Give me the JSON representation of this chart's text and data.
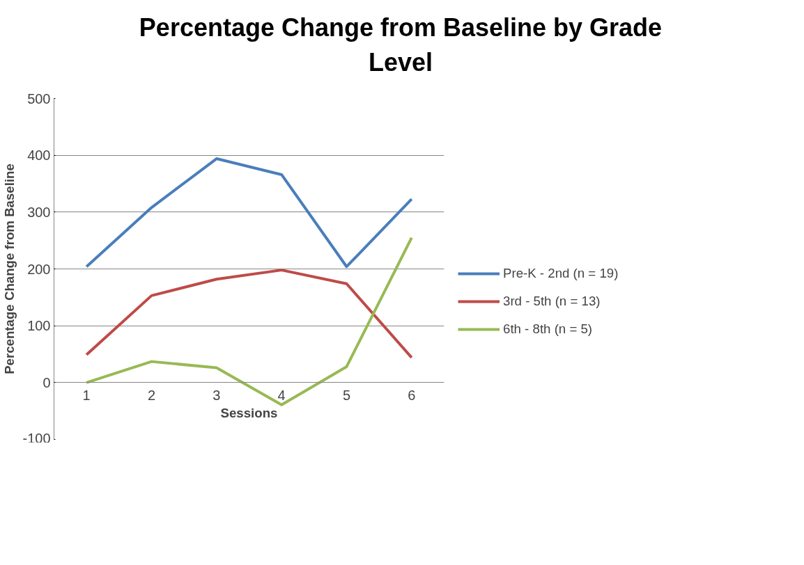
{
  "chart_data": {
    "type": "line",
    "title": "Percentage Change from Baseline by Grade Level",
    "xlabel": "Sessions",
    "ylabel": "Percentage Change from Baseline",
    "categories": [
      "1",
      "2",
      "3",
      "4",
      "5",
      "6"
    ],
    "series": [
      {
        "name": "Pre-K - 2nd (n = 19)",
        "color": "#4a7ebb",
        "values": [
          204,
          308,
          394,
          366,
          204,
          323
        ]
      },
      {
        "name": "3rd - 5th (n = 13)",
        "color": "#be4b48",
        "values": [
          49,
          153,
          182,
          198,
          174,
          44
        ]
      },
      {
        "name": "6th - 8th (n = 5)",
        "color": "#98b954",
        "values": [
          0,
          37,
          26,
          -39,
          28,
          255
        ]
      }
    ],
    "ylim": [
      -100,
      500
    ],
    "yticks": [
      -100,
      0,
      100,
      200,
      300,
      400,
      500
    ],
    "grid": "y",
    "legend": "right",
    "marker": "none",
    "line_style": "solid"
  }
}
